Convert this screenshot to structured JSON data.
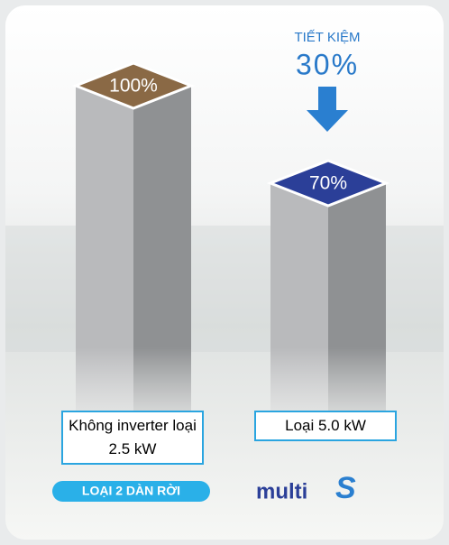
{
  "chart_data": {
    "type": "bar3d",
    "categories": [
      "Không inverter loại 2.5 kW",
      "Loại 5.0 kW"
    ],
    "values": [
      100,
      70
    ],
    "value_labels": [
      "100%",
      "70%"
    ],
    "top_colors": [
      "#8a6945",
      "#2b3f98"
    ],
    "annotations": [
      {
        "text": "TIẾT KIỆM"
      },
      {
        "text": "30%"
      }
    ],
    "badge": "LOẠI 2 DÀN RỜI",
    "logo": {
      "word": "multi",
      "letter": "S"
    }
  }
}
